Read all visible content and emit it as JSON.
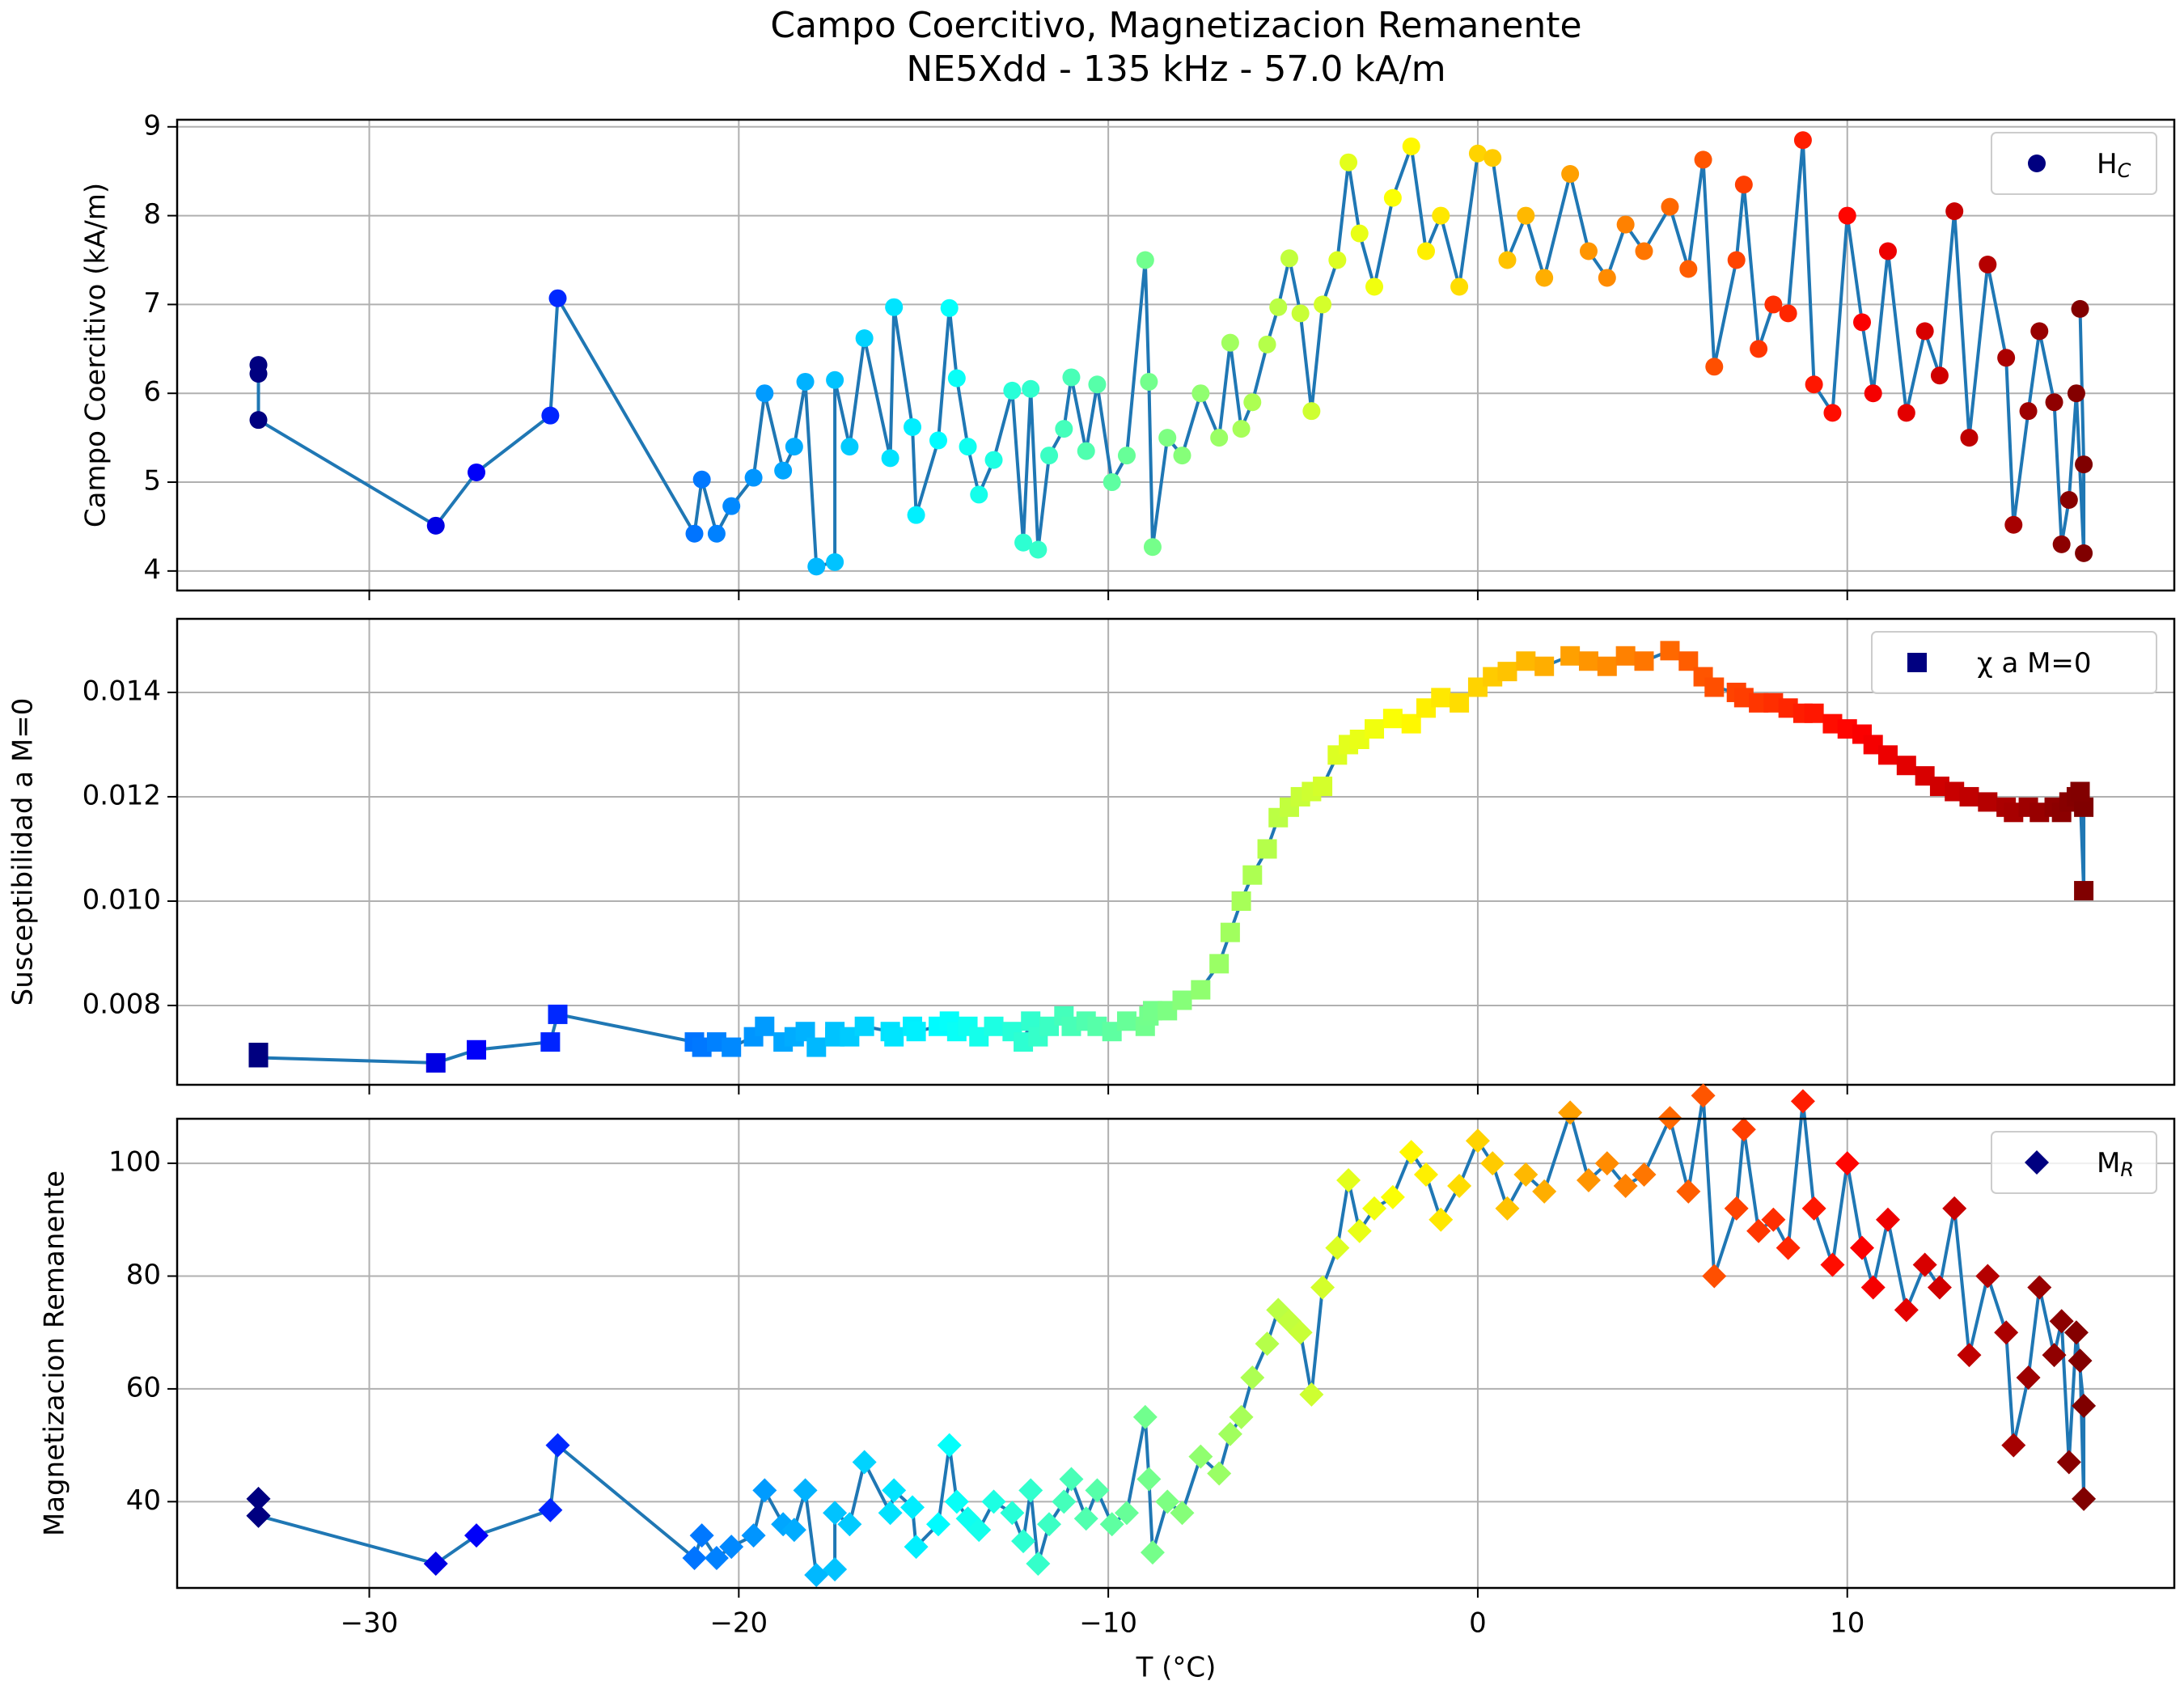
{
  "chart_data": {
    "type": "scatter",
    "title": "Campo Coercitivo, Magnetizacion Remanente",
    "subtitle": "NE5Xdd - 135 kHz - 57.0 kA/m",
    "xlabel": "T (°C)",
    "xlim": [
      -35.2,
      18.85
    ],
    "xticks": [
      {
        "value": -30,
        "label": "−30"
      },
      {
        "value": -20,
        "label": "−20"
      },
      {
        "value": -10,
        "label": "−10"
      },
      0,
      10
    ],
    "grid": true,
    "colormap": "jet",
    "line_color": "#1f77b4",
    "legend_loc": "upper right",
    "x": [
      -33.0,
      -33.0,
      -33.0,
      -28.2,
      -27.1,
      -25.1,
      -24.9,
      -21.2,
      -21.0,
      -20.6,
      -20.2,
      -19.6,
      -19.3,
      -18.8,
      -18.5,
      -18.2,
      -17.9,
      -17.4,
      -17.4,
      -17.0,
      -16.6,
      -15.9,
      -15.8,
      -15.3,
      -15.2,
      -14.6,
      -14.3,
      -14.1,
      -13.8,
      -13.5,
      -13.1,
      -12.6,
      -12.3,
      -12.1,
      -11.9,
      -11.6,
      -11.2,
      -11.0,
      -10.6,
      -10.3,
      -9.9,
      -9.5,
      -9.0,
      -8.9,
      -8.8,
      -8.4,
      -8.0,
      -7.5,
      -7.0,
      -6.7,
      -6.4,
      -6.1,
      -5.7,
      -5.4,
      -5.1,
      -4.8,
      -4.5,
      -4.2,
      -3.8,
      -3.5,
      -3.2,
      -2.8,
      -2.3,
      -1.8,
      -1.4,
      -1.0,
      -0.5,
      0.0,
      0.4,
      0.8,
      1.3,
      1.8,
      2.5,
      3.0,
      3.5,
      4.0,
      4.5,
      5.2,
      5.7,
      6.1,
      6.4,
      7.0,
      7.2,
      7.6,
      8.0,
      8.4,
      8.8,
      9.1,
      9.6,
      10.0,
      10.4,
      10.7,
      11.1,
      11.6,
      12.1,
      12.5,
      12.9,
      13.3,
      13.8,
      14.3,
      14.5,
      14.9,
      15.2,
      15.6,
      15.8,
      16.0,
      16.2,
      16.4,
      16.4,
      16.3
    ],
    "panels": [
      {
        "ylabel": "Campo Coercitivo (kA/m)",
        "ylim": [
          3.78,
          9.08
        ],
        "yticks": [
          4,
          5,
          6,
          7,
          8,
          9
        ],
        "series": [
          {
            "name": "H",
            "name_sub": "C",
            "marker": "circle",
            "values": [
              6.32,
              6.22,
              5.7,
              4.51,
              5.11,
              5.75,
              7.07,
              4.42,
              5.03,
              4.42,
              4.73,
              5.05,
              6.0,
              5.13,
              5.4,
              6.13,
              4.05,
              4.1,
              6.15,
              5.4,
              6.62,
              5.27,
              6.97,
              5.62,
              4.63,
              5.47,
              6.96,
              6.17,
              5.4,
              4.86,
              5.25,
              6.03,
              4.32,
              6.05,
              4.24,
              5.3,
              5.6,
              6.18,
              5.35,
              6.1,
              5.0,
              5.3,
              7.5,
              6.13,
              4.27,
              5.5,
              5.3,
              6.0,
              5.5,
              6.57,
              5.6,
              5.9,
              6.55,
              6.97,
              7.52,
              6.9,
              5.8,
              7.0,
              7.5,
              8.6,
              7.8,
              7.2,
              8.2,
              8.78,
              7.6,
              8.0,
              7.2,
              8.7,
              8.65,
              7.5,
              8.0,
              7.3,
              8.47,
              7.6,
              7.3,
              7.9,
              7.6,
              8.1,
              7.4,
              8.63,
              6.3,
              7.5,
              8.35,
              6.5,
              7.0,
              6.9,
              8.85,
              6.1,
              5.78,
              8.0,
              6.8,
              6.0,
              7.6,
              5.78,
              6.7,
              6.2,
              8.05,
              5.5,
              7.45,
              6.4,
              4.52,
              5.8,
              6.7,
              5.9,
              4.3,
              4.8,
              6.0,
              4.2,
              5.2,
              6.95
            ]
          }
        ]
      },
      {
        "ylabel": "Susceptibilidad a M=0",
        "ylim": [
          0.00648,
          0.01541
        ],
        "yticks": [
          0.008,
          {
            "value": 0.01,
            "label": "0.010"
          },
          0.012,
          0.014
        ],
        "series": [
          {
            "name": "χ a M=0",
            "marker": "square",
            "values": [
              0.0071,
              0.007,
              0.007,
              0.0069,
              0.00715,
              0.0073,
              0.00783,
              0.0073,
              0.0072,
              0.0073,
              0.0072,
              0.0074,
              0.0076,
              0.0073,
              0.0074,
              0.0075,
              0.0072,
              0.0074,
              0.0075,
              0.0074,
              0.0076,
              0.0075,
              0.0074,
              0.0076,
              0.0075,
              0.0076,
              0.0077,
              0.0075,
              0.0076,
              0.0074,
              0.0076,
              0.0075,
              0.0073,
              0.0077,
              0.0074,
              0.0076,
              0.0078,
              0.0076,
              0.0077,
              0.0076,
              0.0075,
              0.0077,
              0.0076,
              0.0078,
              0.0079,
              0.0079,
              0.0081,
              0.0083,
              0.0088,
              0.0094,
              0.01,
              0.0105,
              0.011,
              0.0116,
              0.0118,
              0.012,
              0.0121,
              0.0122,
              0.0128,
              0.013,
              0.0131,
              0.0133,
              0.0135,
              0.0134,
              0.0137,
              0.0139,
              0.0138,
              0.0141,
              0.0143,
              0.0144,
              0.0146,
              0.0145,
              0.0147,
              0.0146,
              0.0145,
              0.0147,
              0.0146,
              0.0148,
              0.0146,
              0.0143,
              0.0141,
              0.014,
              0.0139,
              0.0138,
              0.0138,
              0.0137,
              0.0136,
              0.0136,
              0.0134,
              0.0133,
              0.0132,
              0.013,
              0.0128,
              0.0126,
              0.0124,
              0.0122,
              0.0121,
              0.012,
              0.0119,
              0.0118,
              0.0117,
              0.0118,
              0.0117,
              0.0118,
              0.0117,
              0.0119,
              0.012,
              0.0118,
              0.0102,
              0.0121
            ]
          }
        ]
      },
      {
        "ylabel": "Magnetizacion Remanente",
        "ylim": [
          24.7,
          107.9
        ],
        "yticks": [
          40,
          60,
          80,
          100
        ],
        "series": [
          {
            "name": "M",
            "name_sub": "R",
            "marker": "diamond",
            "values": [
              40.5,
              37.5,
              37.5,
              29,
              34,
              38.5,
              50,
              30,
              34,
              30,
              32,
              34,
              42,
              36,
              35,
              42,
              27,
              28,
              38,
              36,
              47,
              38,
              42,
              39,
              32,
              36,
              50,
              40,
              37,
              35,
              40,
              38,
              33,
              42,
              29,
              36,
              40,
              44,
              37,
              42,
              36,
              38,
              55,
              44,
              31,
              40,
              38,
              48,
              45,
              52,
              55,
              62,
              68,
              74,
              72,
              70,
              59,
              78,
              85,
              97,
              88,
              92,
              94,
              102,
              98,
              90,
              96,
              104,
              100,
              92,
              98,
              95,
              109,
              97,
              100,
              96,
              98,
              108,
              95,
              112,
              80,
              92,
              106,
              88,
              90,
              85,
              111,
              92,
              82,
              100,
              85,
              78,
              90,
              74,
              82,
              78,
              92,
              66,
              80,
              70,
              50,
              62,
              78,
              66,
              72,
              47,
              70,
              57,
              40.5,
              65
            ]
          }
        ]
      }
    ]
  }
}
